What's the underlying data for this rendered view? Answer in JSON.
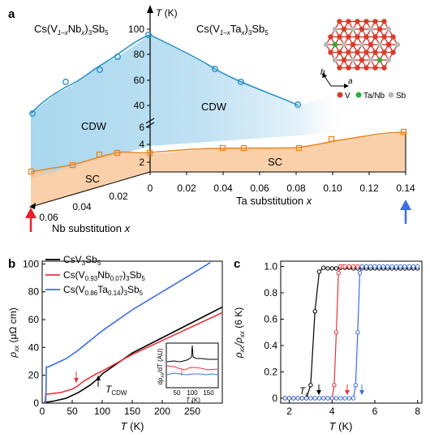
{
  "panel_a": {
    "label": "a",
    "yaxis": {
      "symbol": "T",
      "unit": " (K)",
      "ticks_top": [
        "40",
        "60",
        "80",
        "100"
      ],
      "ticks_bottom": [
        "2",
        "4",
        "6"
      ]
    },
    "left_label": {
      "pre": "Cs(V",
      "sub1": "1–x",
      "mid": "Nb",
      "sub2": "x",
      "post1": ")",
      "sub3": "3",
      "post2": "Sb",
      "sub4": "5"
    },
    "right_label": {
      "pre": "Cs(V",
      "sub1": "1–x",
      "mid": "Ta",
      "sub2": "x",
      "post1": ")",
      "sub3": "3",
      "post2": "Sb",
      "sub4": "5"
    },
    "ta_axis": {
      "label_pre": "Ta substitution ",
      "label_var": "x",
      "ticks": [
        "0",
        "0.02",
        "0.04",
        "0.06",
        "0.08",
        "0.10",
        "0.12",
        "0.14"
      ]
    },
    "nb_axis": {
      "label_pre": "Nb substitution ",
      "label_var": "x",
      "ticks": [
        "0.06",
        "0.04",
        "0.02"
      ]
    },
    "regions": {
      "cdw_left": "CDW",
      "cdw_right": "CDW",
      "sc_left": "SC",
      "sc_right": "SC"
    },
    "lattice_legend": {
      "v": "V",
      "ta_nb": "Ta/Nb",
      "sb": "Sb",
      "axis_a": "a",
      "axis_b": "b"
    },
    "colors": {
      "tcdw_line": "#1f8fc4",
      "tc_line": "#e8841e",
      "cdw_fill": "#a9d7ee",
      "sc_fill": "#f8c89a",
      "nb_arrow": "#e8202a",
      "ta_arrow": "#3a6fe0"
    }
  },
  "panel_b": {
    "label": "b",
    "ylabel": {
      "sym": "ρ",
      "sub": "xx",
      "unit": " (μΩ cm)"
    },
    "xlabel": {
      "sym": "T",
      "unit": " (K)"
    },
    "yticks": [
      "0",
      "20",
      "40",
      "60",
      "80",
      "100"
    ],
    "xticks": [
      "0",
      "50",
      "100",
      "150",
      "200",
      "250"
    ],
    "legend": [
      {
        "pre": "CsV",
        "s1": "3",
        "mid": "Sb",
        "s2": "5",
        "tail": "",
        "s3": "",
        "end": "",
        "s4": "",
        "fin": "",
        "color": "#000000"
      },
      {
        "pre": "Cs(V",
        "s1": "0.93",
        "mid": "Nb",
        "s2": "0.07",
        "tail": ")",
        "s3": "3",
        "end": "Sb",
        "s4": "5",
        "fin": "",
        "color": "#e8343a"
      },
      {
        "pre": "Cs(V",
        "s1": "0.86",
        "mid": "Ta",
        "s2": "0.14",
        "tail": ")",
        "s3": "3",
        "end": "Sb",
        "s4": "5",
        "fin": "",
        "color": "#3a6fe0"
      }
    ],
    "tcdw_label": {
      "sym": "T",
      "sub": "CDW"
    },
    "inset": {
      "ylabel_pre": "dρ",
      "ylabel_sub": "xx",
      "ylabel_post": "/dT (AU)",
      "xticks": [
        "50",
        "100",
        "150"
      ],
      "xlabel_sym": "T",
      "xlabel_unit": " (K)"
    }
  },
  "panel_c": {
    "label": "c",
    "ylabel": {
      "s1": "ρ",
      "b1": "xx",
      "mid": "/ρ",
      "s2": "",
      "b2": "xx",
      "post": " (6 K)"
    },
    "xlabel": {
      "sym": "T",
      "unit": " (K)"
    },
    "yticks": [
      "0",
      "0.2",
      "0.4",
      "0.6",
      "0.8",
      "1.0"
    ],
    "xticks": [
      "2",
      "4",
      "6",
      "8"
    ],
    "tc_label": {
      "sym": "T",
      "sub": "c"
    }
  },
  "chart_data": [
    {
      "type": "line",
      "panel": "a",
      "ylabel": "T (K)",
      "series": [
        {
          "name": "T_CDW Nb side",
          "x": [
            0.06,
            0.045,
            0.035,
            0.0225,
            0.0125,
            0.0
          ],
          "y": [
            74,
            82,
            86,
            90,
            93,
            94
          ]
        },
        {
          "name": "T_CDW Ta side",
          "x": [
            0.0,
            0.04,
            0.05,
            0.08
          ],
          "y": [
            94,
            72,
            66,
            54
          ]
        },
        {
          "name": "T_c Nb side",
          "x": [
            0.06,
            0.045,
            0.035,
            0.0225,
            0.0125,
            0.0
          ],
          "y": [
            1.4,
            1.7,
            2.1,
            2.7,
            3.2,
            3.3
          ]
        },
        {
          "name": "T_c Ta side",
          "x": [
            0.0,
            0.04,
            0.05,
            0.08,
            0.1,
            0.14
          ],
          "y": [
            3.3,
            3.5,
            3.5,
            3.5,
            4.7,
            5.2
          ]
        }
      ]
    },
    {
      "type": "line",
      "panel": "b",
      "xlabel": "T (K)",
      "ylabel": "ρxx (μΩ cm)",
      "xlim": [
        0,
        300
      ],
      "ylim": [
        0,
        102
      ],
      "series": [
        {
          "name": "CsV3Sb5",
          "x": [
            3,
            10,
            20,
            40,
            60,
            80,
            94,
            100,
            150,
            200,
            250,
            300
          ],
          "y": [
            0.5,
            0.8,
            1.5,
            3.5,
            7.5,
            13,
            18,
            21,
            36,
            47,
            58,
            69
          ]
        },
        {
          "name": "Cs(V0.93Nb0.07)3Sb5",
          "x": [
            5,
            6,
            10,
            30,
            50,
            58,
            70,
            90,
            100,
            150,
            200,
            250,
            300
          ],
          "y": [
            0,
            6.5,
            6.5,
            7.5,
            10,
            12,
            16,
            21,
            23,
            35,
            45,
            55,
            65
          ]
        },
        {
          "name": "Cs(V0.86Ta0.14)3Sb5",
          "x": [
            6,
            7,
            10,
            20,
            40,
            60,
            80,
            100,
            150,
            200,
            250,
            280
          ],
          "y": [
            0,
            26,
            26,
            28,
            32,
            38,
            45,
            52,
            67,
            80,
            93,
            101
          ]
        }
      ]
    },
    {
      "type": "scatter",
      "panel": "c",
      "xlabel": "T (K)",
      "ylabel": "ρxx/ρxx (6 K)",
      "xlim": [
        1.6,
        8.2
      ],
      "ylim": [
        0,
        1.04
      ],
      "series": [
        {
          "name": "CsV3Sb5",
          "x": [
            1.8,
            2.0,
            2.2,
            2.4,
            2.6,
            2.8,
            3.0,
            3.2,
            3.4,
            3.6,
            3.8,
            4.0,
            4.2,
            4.4,
            4.6,
            4.8,
            5.0,
            5.2,
            5.4,
            5.6,
            5.8,
            6.0,
            6.2,
            6.4,
            6.6,
            6.8,
            7.0,
            7.2,
            7.4,
            7.6,
            7.8,
            8.0
          ],
          "y": [
            0,
            0,
            0,
            0,
            0,
            0,
            0.1,
            0.66,
            0.96,
            0.99,
            0.985,
            0.985,
            0.985,
            0.99,
            0.99,
            0.99,
            0.985,
            0.985,
            0.985,
            0.985,
            0.985,
            0.985,
            0.985,
            0.985,
            0.985,
            0.985,
            0.985,
            0.985,
            0.985,
            0.985,
            0.985,
            0.985
          ]
        },
        {
          "name": "Cs(V0.93Nb0.07)3Sb5",
          "x": [
            1.8,
            2.0,
            2.2,
            2.4,
            2.6,
            2.8,
            3.0,
            3.2,
            3.4,
            3.6,
            3.8,
            4.0,
            4.1,
            4.2,
            4.3,
            4.4,
            4.5,
            4.6,
            4.8,
            5.0,
            5.2,
            5.4,
            5.6,
            5.8,
            6.0
          ],
          "y": [
            0,
            0,
            0,
            0,
            0,
            0,
            0,
            0,
            0,
            0,
            0,
            0,
            0.1,
            0.5,
            0.95,
            1.0,
            1.0,
            1.0,
            1.0,
            1.0,
            1.0,
            1.0,
            1.0,
            1.0,
            1.0
          ]
        },
        {
          "name": "Cs(V0.86Ta0.14)3Sb5",
          "x": [
            1.8,
            2.0,
            2.2,
            2.4,
            2.6,
            2.8,
            3.0,
            3.2,
            3.4,
            3.6,
            3.8,
            4.0,
            4.2,
            4.4,
            4.6,
            4.8,
            5.0,
            5.1,
            5.2,
            5.3,
            5.4,
            5.6,
            5.8,
            6.0,
            6.2,
            6.4,
            6.6,
            6.8,
            7.0,
            7.2,
            7.4,
            7.6,
            7.8,
            8.0
          ],
          "y": [
            0,
            0,
            0,
            0,
            0,
            0,
            0,
            0,
            0,
            0,
            0,
            0,
            0,
            0,
            0,
            0,
            0,
            0.1,
            0.5,
            0.95,
            1.0,
            1.0,
            1.0,
            1.0,
            1.0,
            1.0,
            1.0,
            1.0,
            1.0,
            1.0,
            1.0,
            1.0,
            1.0,
            1.0
          ]
        }
      ]
    }
  ]
}
